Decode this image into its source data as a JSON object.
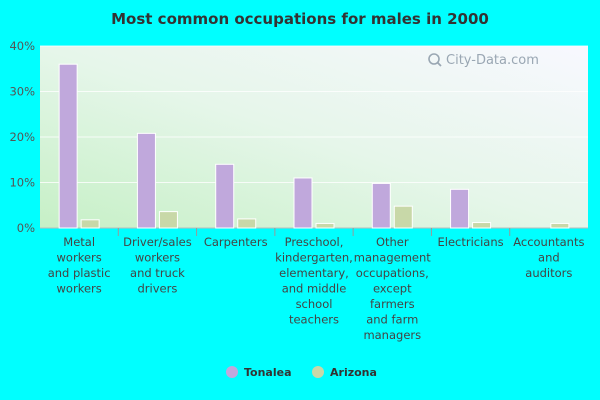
{
  "chart_data": {
    "type": "bar",
    "title": "Most common occupations for males in 2000",
    "xlabel": "",
    "ylabel": "",
    "ylim": [
      0,
      40
    ],
    "y_ticks": [
      "0%",
      "10%",
      "20%",
      "30%",
      "40%"
    ],
    "y_tick_values": [
      0,
      10,
      20,
      30,
      40
    ],
    "grid": true,
    "legend_position": "bottom",
    "categories": [
      [
        "Metal",
        "workers",
        "and plastic",
        "workers"
      ],
      [
        "Driver/sales",
        "workers",
        "and truck",
        "drivers"
      ],
      [
        "Carpenters"
      ],
      [
        "Preschool,",
        "kindergarten,",
        "elementary,",
        "and middle",
        "school",
        "teachers"
      ],
      [
        "Other",
        "management",
        "occupations,",
        "except",
        "farmers",
        "and farm",
        "managers"
      ],
      [
        "Electricians"
      ],
      [
        "Accountants",
        "and",
        "auditors"
      ]
    ],
    "series": [
      {
        "name": "Tonalea",
        "color": "#c0a8dc",
        "values": [
          36.0,
          20.8,
          14.0,
          11.0,
          9.8,
          8.5,
          0
        ]
      },
      {
        "name": "Arizona",
        "color": "#c8d8a8",
        "values": [
          1.8,
          3.6,
          2.0,
          1.0,
          4.8,
          1.2,
          1.0
        ]
      }
    ]
  },
  "watermark": "City-Data.com",
  "watermark_icon": "search-icon"
}
